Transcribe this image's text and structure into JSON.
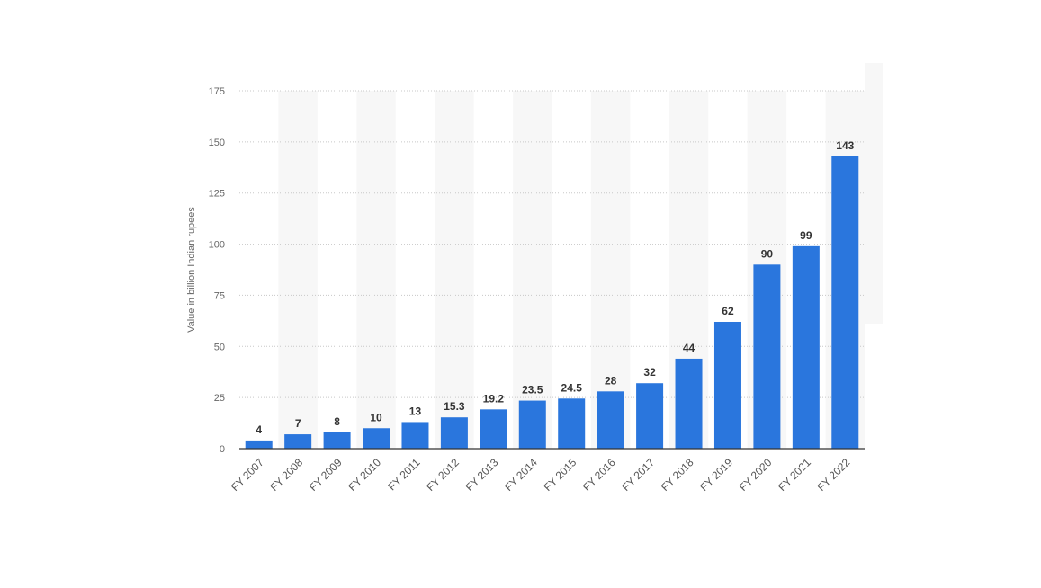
{
  "chart_data": {
    "type": "bar",
    "y_axis_label": "Value in billion Indian rupees",
    "categories": [
      "FY 2007",
      "FY 2008",
      "FY 2009",
      "FY 2010",
      "FY 2011",
      "FY 2012",
      "FY 2013",
      "FY 2014",
      "FY 2015",
      "FY 2016",
      "FY 2017",
      "FY 2018",
      "FY 2019",
      "FY 2020",
      "FY 2021",
      "FY 2022"
    ],
    "values": [
      4,
      7,
      8,
      10,
      13,
      15.3,
      19.2,
      23.5,
      24.5,
      28,
      32,
      44,
      62,
      90,
      99,
      143
    ],
    "color": "#2a76dd",
    "ylim": [
      0,
      175
    ],
    "yticks": [
      0,
      25,
      50,
      75,
      100,
      125,
      150,
      175
    ],
    "grid": true
  }
}
